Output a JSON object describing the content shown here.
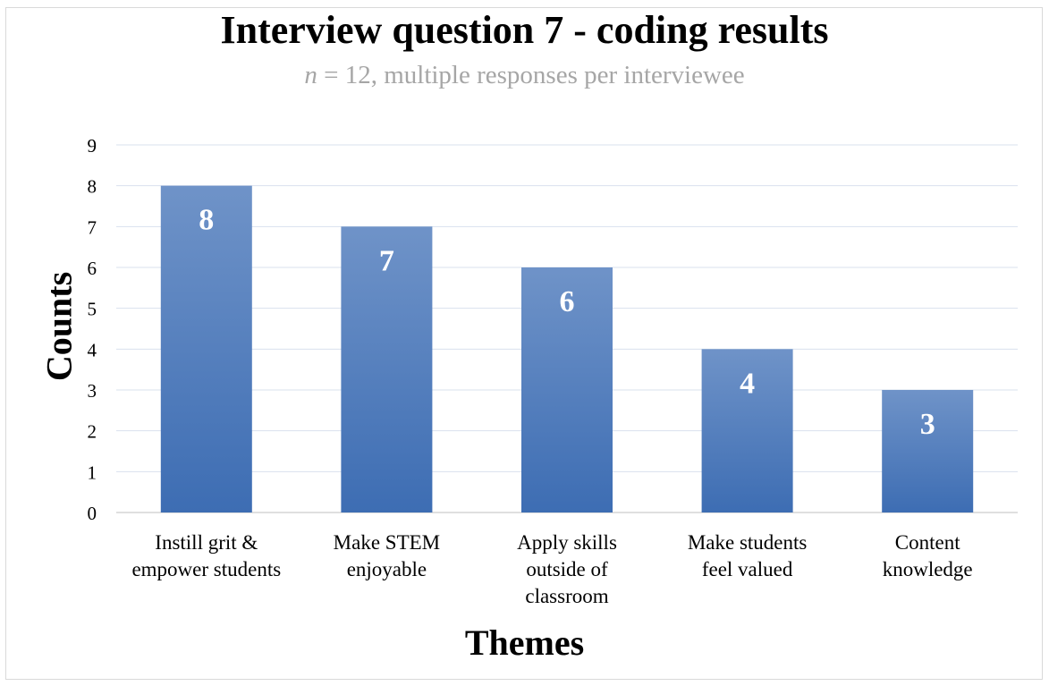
{
  "chart_data": {
    "type": "bar",
    "title": "Interview question 7 - coding results",
    "subtitle_italic": "n",
    "subtitle_rest": " = 12, multiple responses per interviewee",
    "xlabel": "Themes",
    "ylabel": "Counts",
    "ylim": [
      0,
      9
    ],
    "yticks": [
      "0",
      "1",
      "2",
      "3",
      "4",
      "5",
      "6",
      "7",
      "8",
      "9"
    ],
    "grid": true,
    "categories": [
      "Instill grit &\nempower students",
      "Make STEM\nenjoyable",
      "Apply skills\noutside of\nclassroom",
      "Make students\nfeel valued",
      "Content\nknowledge"
    ],
    "values": [
      8,
      7,
      6,
      4,
      3
    ],
    "data_labels": [
      "8",
      "7",
      "6",
      "4",
      "3"
    ],
    "bar_color_top": "#6f93c8",
    "bar_color_bottom": "#3d6db3"
  }
}
